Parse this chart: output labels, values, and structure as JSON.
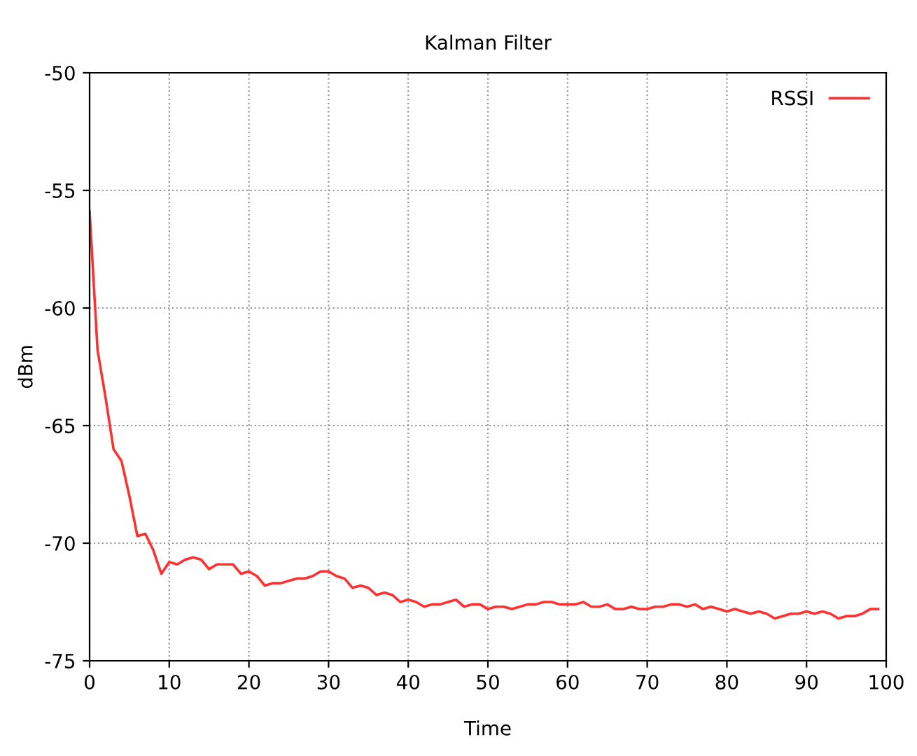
{
  "chart_data": {
    "type": "line",
    "title": "Kalman Filter",
    "xlabel": "Time",
    "ylabel": "dBm",
    "x": [
      0,
      1,
      2,
      3,
      4,
      5,
      6,
      7,
      8,
      9,
      10,
      11,
      12,
      13,
      14,
      15,
      16,
      17,
      18,
      19,
      20,
      21,
      22,
      23,
      24,
      25,
      26,
      27,
      28,
      29,
      30,
      31,
      32,
      33,
      34,
      35,
      36,
      37,
      38,
      39,
      40,
      41,
      42,
      43,
      44,
      45,
      46,
      47,
      48,
      49,
      50,
      51,
      52,
      53,
      54,
      55,
      56,
      57,
      58,
      59,
      60,
      61,
      62,
      63,
      64,
      65,
      66,
      67,
      68,
      69,
      70,
      71,
      72,
      73,
      74,
      75,
      76,
      77,
      78,
      79,
      80,
      81,
      82,
      83,
      84,
      85,
      86,
      87,
      88,
      89,
      90,
      91,
      92,
      93,
      94,
      95,
      96,
      97,
      98,
      99
    ],
    "series": [
      {
        "name": "RSSI",
        "color": "#ff3030",
        "values": [
          -55.9,
          -61.8,
          -63.8,
          -66.0,
          -66.5,
          -68.0,
          -69.7,
          -69.6,
          -70.3,
          -71.3,
          -70.8,
          -70.9,
          -70.7,
          -70.6,
          -70.7,
          -71.1,
          -70.9,
          -70.9,
          -70.9,
          -71.3,
          -71.2,
          -71.4,
          -71.8,
          -71.7,
          -71.7,
          -71.6,
          -71.5,
          -71.5,
          -71.4,
          -71.2,
          -71.2,
          -71.4,
          -71.5,
          -71.9,
          -71.8,
          -71.9,
          -72.2,
          -72.1,
          -72.2,
          -72.5,
          -72.4,
          -72.5,
          -72.7,
          -72.6,
          -72.6,
          -72.5,
          -72.4,
          -72.7,
          -72.6,
          -72.6,
          -72.8,
          -72.7,
          -72.7,
          -72.8,
          -72.7,
          -72.6,
          -72.6,
          -72.5,
          -72.5,
          -72.6,
          -72.6,
          -72.6,
          -72.5,
          -72.7,
          -72.7,
          -72.6,
          -72.8,
          -72.8,
          -72.7,
          -72.8,
          -72.8,
          -72.7,
          -72.7,
          -72.6,
          -72.6,
          -72.7,
          -72.6,
          -72.8,
          -72.7,
          -72.8,
          -72.9,
          -72.8,
          -72.9,
          -73.0,
          -72.9,
          -73.0,
          -73.2,
          -73.1,
          -73.0,
          -73.0,
          -72.9,
          -73.0,
          -72.9,
          -73.0,
          -73.2,
          -73.1,
          -73.1,
          -73.0,
          -72.8,
          -72.8
        ]
      }
    ],
    "xlim": [
      0,
      100
    ],
    "ylim": [
      -75,
      -50
    ],
    "xticks": [
      0,
      10,
      20,
      30,
      40,
      50,
      60,
      70,
      80,
      90,
      100
    ],
    "yticks": [
      -75,
      -70,
      -65,
      -60,
      -55,
      -50
    ],
    "grid": true,
    "legend": "top right",
    "line_style": "solid",
    "marker": "none"
  }
}
